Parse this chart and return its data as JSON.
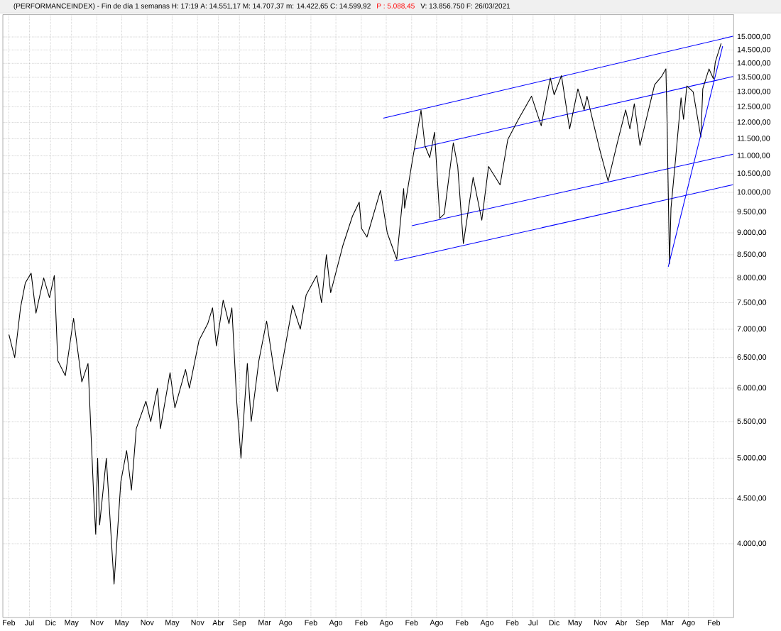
{
  "chart_data": {
    "type": "line",
    "title": "(PERFORMANCEINDEX) - Fin de día 1 semanas  H: 17:19  A: 14.551,17  M: 14.707,37  m: 14.422,65  C: 14.599,92",
    "annotations": [
      "P : 5.088,45",
      "V: 13.856.750  F: 26/03/2021"
    ],
    "log": "y",
    "grid": true,
    "marker": "none",
    "line_style": "solid",
    "xlim": [
      "2006-12-20",
      "2021-06-25"
    ],
    "ylim": [
      3300,
      15900
    ],
    "xticks": [
      {
        "value": "2007-02-01",
        "label": "Feb"
      },
      {
        "value": "2007-07-01",
        "label": "Jul"
      },
      {
        "value": "2007-12-01",
        "label": "Dic"
      },
      {
        "value": "2008-05-01",
        "label": "May"
      },
      {
        "value": "2008-11-01",
        "label": "Nov"
      },
      {
        "value": "2009-05-01",
        "label": "May"
      },
      {
        "value": "2009-11-01",
        "label": "Nov"
      },
      {
        "value": "2010-05-01",
        "label": "May"
      },
      {
        "value": "2010-11-01",
        "label": "Nov"
      },
      {
        "value": "2011-04-01",
        "label": "Abr"
      },
      {
        "value": "2011-09-01",
        "label": "Sep"
      },
      {
        "value": "2012-03-01",
        "label": "Mar"
      },
      {
        "value": "2012-08-01",
        "label": "Ago"
      },
      {
        "value": "2013-02-01",
        "label": "Feb"
      },
      {
        "value": "2013-08-01",
        "label": "Ago"
      },
      {
        "value": "2014-02-01",
        "label": "Feb"
      },
      {
        "value": "2014-08-01",
        "label": "Ago"
      },
      {
        "value": "2015-02-01",
        "label": "Feb"
      },
      {
        "value": "2015-08-01",
        "label": "Ago"
      },
      {
        "value": "2016-02-01",
        "label": "Feb"
      },
      {
        "value": "2016-08-01",
        "label": "Ago"
      },
      {
        "value": "2017-02-01",
        "label": "Feb"
      },
      {
        "value": "2017-07-01",
        "label": "Jul"
      },
      {
        "value": "2017-12-01",
        "label": "Dic"
      },
      {
        "value": "2018-05-01",
        "label": "May"
      },
      {
        "value": "2018-11-01",
        "label": "Nov"
      },
      {
        "value": "2019-04-01",
        "label": "Abr"
      },
      {
        "value": "2019-09-01",
        "label": "Sep"
      },
      {
        "value": "2020-03-01",
        "label": "Mar"
      },
      {
        "value": "2020-08-01",
        "label": "Ago"
      },
      {
        "value": "2021-02-01",
        "label": "Feb"
      }
    ],
    "yticks": [
      {
        "value": 4000,
        "label": "4.000,00"
      },
      {
        "value": 4500,
        "label": "4.500,00"
      },
      {
        "value": 5000,
        "label": "5.000,00"
      },
      {
        "value": 5500,
        "label": "5.500,00"
      },
      {
        "value": 6000,
        "label": "6.000,00"
      },
      {
        "value": 6500,
        "label": "6.500,00"
      },
      {
        "value": 7000,
        "label": "7.000,00"
      },
      {
        "value": 7500,
        "label": "7.500,00"
      },
      {
        "value": 8000,
        "label": "8.000,00"
      },
      {
        "value": 8500,
        "label": "8.500,00"
      },
      {
        "value": 9000,
        "label": "9.000,00"
      },
      {
        "value": 9500,
        "label": "9.500,00"
      },
      {
        "value": 10000,
        "label": "10.000,00"
      },
      {
        "value": 10500,
        "label": "10.500,00"
      },
      {
        "value": 11000,
        "label": "11.000,00"
      },
      {
        "value": 11500,
        "label": "11.500,00"
      },
      {
        "value": 12000,
        "label": "12.000,00"
      },
      {
        "value": 12500,
        "label": "12.500,00"
      },
      {
        "value": 13000,
        "label": "13.000,00"
      },
      {
        "value": 13500,
        "label": "13.500,00"
      },
      {
        "value": 14000,
        "label": "14.000,00"
      },
      {
        "value": 14500,
        "label": "14.500,00"
      },
      {
        "value": 15000,
        "label": "15.000,00"
      }
    ],
    "series": [
      {
        "color": "#000000",
        "x": [
          "2007-02-02",
          "2007-03-16",
          "2007-04-27",
          "2007-06-01",
          "2007-07-13",
          "2007-08-17",
          "2007-10-12",
          "2007-11-23",
          "2007-12-28",
          "2008-01-22",
          "2008-03-17",
          "2008-05-16",
          "2008-07-15",
          "2008-08-29",
          "2008-10-10",
          "2008-10-24",
          "2008-11-07",
          "2008-11-21",
          "2009-01-09",
          "2009-03-06",
          "2009-04-24",
          "2009-06-05",
          "2009-07-10",
          "2009-08-14",
          "2009-10-23",
          "2009-11-27",
          "2010-01-15",
          "2010-02-05",
          "2010-04-16",
          "2010-05-21",
          "2010-08-06",
          "2010-09-03",
          "2010-11-12",
          "2011-01-14",
          "2011-02-18",
          "2011-03-18",
          "2011-05-06",
          "2011-06-17",
          "2011-07-08",
          "2011-08-12",
          "2011-09-12",
          "2011-10-28",
          "2011-11-25",
          "2012-01-20",
          "2012-03-16",
          "2012-06-01",
          "2012-09-21",
          "2012-11-16",
          "2012-12-28",
          "2013-03-15",
          "2013-04-19",
          "2013-05-24",
          "2013-06-24",
          "2013-09-20",
          "2013-11-29",
          "2014-01-17",
          "2014-02-03",
          "2014-03-14",
          "2014-06-20",
          "2014-08-08",
          "2014-10-16",
          "2014-12-05",
          "2014-12-12",
          "2015-01-30",
          "2015-04-10",
          "2015-05-08",
          "2015-06-12",
          "2015-07-17",
          "2015-08-24",
          "2015-09-25",
          "2015-11-30",
          "2016-01-01",
          "2016-02-11",
          "2016-04-22",
          "2016-06-24",
          "2016-08-12",
          "2016-11-04",
          "2016-12-30",
          "2017-03-17",
          "2017-06-20",
          "2017-08-29",
          "2017-11-03",
          "2017-12-01",
          "2018-01-23",
          "2018-03-23",
          "2018-05-22",
          "2018-07-06",
          "2018-07-27",
          "2018-10-26",
          "2018-12-27",
          "2019-03-08",
          "2019-05-03",
          "2019-06-03",
          "2019-07-05",
          "2019-08-15",
          "2019-11-29",
          "2020-01-17",
          "2020-02-19",
          "2020-02-28",
          "2020-03-16",
          "2020-03-27",
          "2020-04-29",
          "2020-06-08",
          "2020-06-26",
          "2020-07-20",
          "2020-09-04",
          "2020-10-30",
          "2020-11-13",
          "2020-12-28",
          "2021-01-29",
          "2021-02-12",
          "2021-03-26"
        ],
        "values": [
          6900,
          6500,
          7400,
          7900,
          8100,
          7300,
          8000,
          7600,
          8050,
          6450,
          6200,
          7200,
          6100,
          6400,
          4500,
          4100,
          5000,
          4200,
          5000,
          3600,
          4700,
          5100,
          4600,
          5400,
          5800,
          5500,
          6000,
          5400,
          6250,
          5700,
          6300,
          6000,
          6800,
          7100,
          7400,
          6700,
          7550,
          7100,
          7400,
          5800,
          5000,
          6400,
          5500,
          6450,
          7150,
          5950,
          7450,
          7000,
          7650,
          8050,
          7500,
          8500,
          7700,
          8700,
          9400,
          9750,
          9100,
          8900,
          10050,
          9000,
          8400,
          10100,
          9600,
          10700,
          12390,
          11300,
          10950,
          11700,
          9350,
          9450,
          11380,
          10700,
          8750,
          10400,
          9300,
          10700,
          10200,
          11480,
          12100,
          12850,
          11900,
          13480,
          12900,
          13560,
          11800,
          13100,
          12400,
          12850,
          11200,
          10300,
          11450,
          12400,
          11800,
          12600,
          11300,
          13240,
          13520,
          13800,
          11900,
          8300,
          9600,
          10900,
          12800,
          12100,
          13200,
          13000,
          11550,
          13100,
          13800,
          13450,
          14050,
          14750
        ]
      },
      {
        "color": "#0000ff",
        "x": [
          "2014-07-10",
          "2021-06-20"
        ],
        "values": [
          12135,
          15028
        ]
      },
      {
        "color": "#0000ff",
        "x": [
          "2015-02-18",
          "2021-06-20"
        ],
        "values": [
          11190,
          13529
        ]
      },
      {
        "color": "#0000ff",
        "x": [
          "2015-02-03",
          "2021-06-20"
        ],
        "values": [
          9168,
          11046
        ]
      },
      {
        "color": "#0000ff",
        "x": [
          "2014-09-29",
          "2021-06-20"
        ],
        "values": [
          8361,
          10203
        ]
      },
      {
        "color": "#0000ff",
        "x": [
          "2020-03-07",
          "2021-04-06"
        ],
        "values": [
          8238,
          14644
        ]
      }
    ]
  }
}
